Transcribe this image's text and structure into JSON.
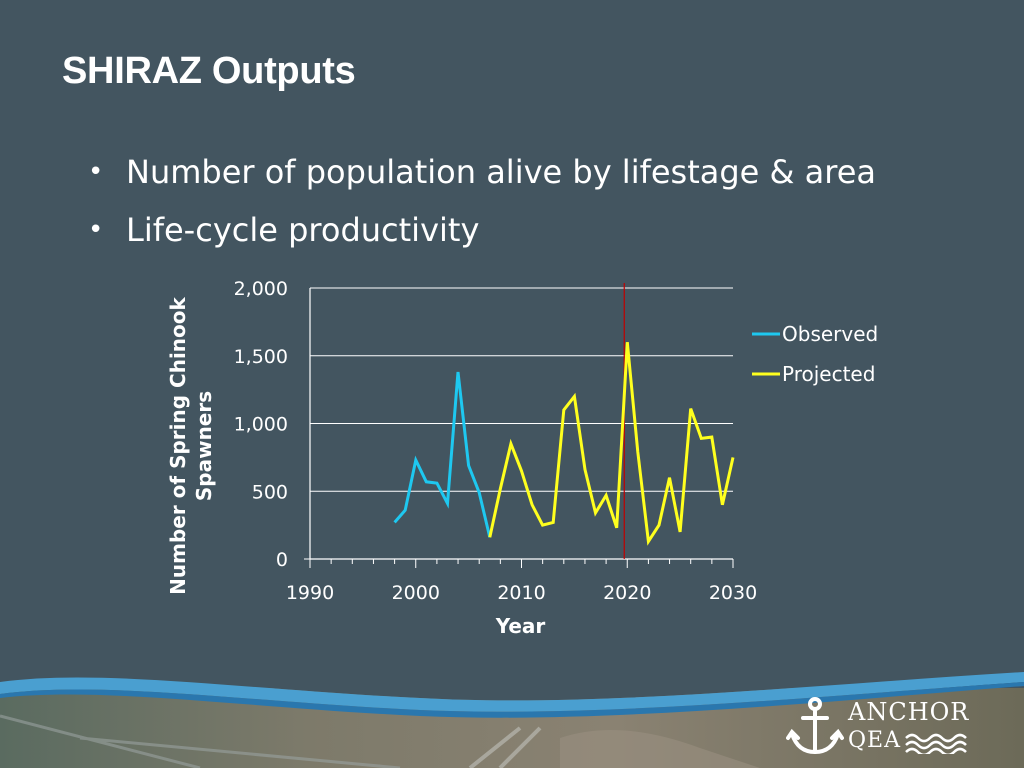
{
  "slide": {
    "title": "SHIRAZ Outputs",
    "bullets": [
      "Number of population alive by lifestage & area",
      "Life-cycle productivity"
    ]
  },
  "logo": {
    "line1": "ANCHOR",
    "line2": "QEA"
  },
  "colors": {
    "background": "#435560",
    "observed": "#1ec8f0",
    "projected": "#ffff1e",
    "divider": "#c00000",
    "footer_wave": "#4a9fd0"
  },
  "chart_data": {
    "type": "line",
    "xlabel": "Year",
    "ylabel": "Number of Spring Chinook Spawners",
    "xlim": [
      1990,
      2030
    ],
    "ylim": [
      0,
      2000
    ],
    "xticks": [
      1990,
      2000,
      2010,
      2020,
      2030
    ],
    "xtick_labels": [
      "1990",
      "2000",
      "2010",
      "2020",
      "2030"
    ],
    "yticks": [
      0,
      500,
      1000,
      1500,
      2000
    ],
    "ytick_labels": [
      "0",
      "500",
      "1,000",
      "1,500",
      "2,000"
    ],
    "grid": "horizontal",
    "legend_position": "right",
    "vertical_marker_year": 2020,
    "series": [
      {
        "name": "Observed",
        "color": "#1ec8f0",
        "x": [
          1998,
          1999,
          2000,
          2001,
          2002,
          2003,
          2004,
          2005,
          2006,
          2007
        ],
        "y": [
          270,
          360,
          730,
          570,
          560,
          410,
          1380,
          690,
          490,
          160
        ]
      },
      {
        "name": "Projected",
        "color": "#ffff1e",
        "x": [
          2007,
          2008,
          2009,
          2010,
          2011,
          2012,
          2013,
          2014,
          2015,
          2016,
          2017,
          2018,
          2019,
          2020,
          2021,
          2022,
          2023,
          2024,
          2025,
          2026,
          2027,
          2028,
          2029,
          2030
        ],
        "y": [
          160,
          520,
          850,
          650,
          400,
          250,
          270,
          1100,
          1200,
          660,
          340,
          470,
          230,
          1600,
          790,
          130,
          250,
          600,
          200,
          1110,
          890,
          900,
          400,
          750
        ]
      }
    ]
  }
}
